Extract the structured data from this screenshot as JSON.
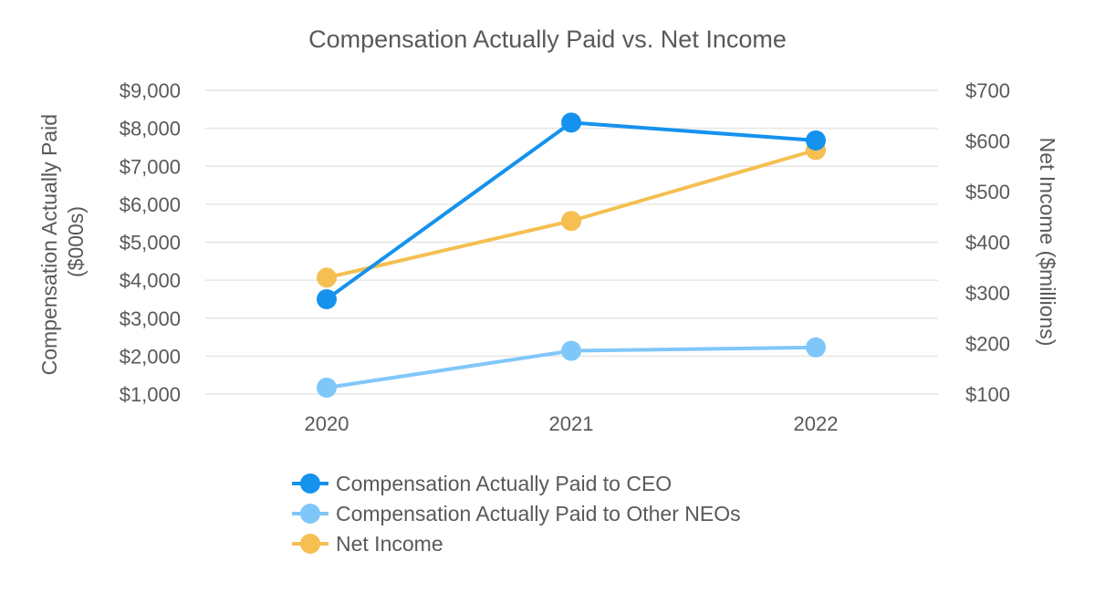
{
  "chart_data": {
    "type": "line",
    "title": "Compensation Actually Paid vs. Net Income",
    "categories": [
      "2020",
      "2021",
      "2022"
    ],
    "y_left": {
      "label_lines": [
        "Compensation Actually Paid",
        "($000s)"
      ],
      "ticks": [
        "$1,000",
        "$2,000",
        "$3,000",
        "$4,000",
        "$5,000",
        "$6,000",
        "$7,000",
        "$8,000",
        "$9,000"
      ],
      "ylim": [
        1000,
        9000
      ]
    },
    "y_right": {
      "label": "Net Income ($millions)",
      "ticks": [
        "$100",
        "$200",
        "$300",
        "$400",
        "$500",
        "$600",
        "$700"
      ],
      "ylim": [
        100,
        700
      ]
    },
    "series": [
      {
        "name": "Compensation Actually Paid to CEO",
        "axis": "left",
        "color": "#1592EE",
        "values": [
          3500,
          8150,
          7680
        ]
      },
      {
        "name": "Compensation Actually Paid to Other NEOs",
        "axis": "left",
        "color": "#80C7F9",
        "values": [
          1170,
          2140,
          2230
        ]
      },
      {
        "name": "Net Income",
        "axis": "right",
        "color": "#F5BF52",
        "values": [
          330,
          442,
          582
        ]
      }
    ],
    "grid": true,
    "legend_position": "bottom"
  }
}
